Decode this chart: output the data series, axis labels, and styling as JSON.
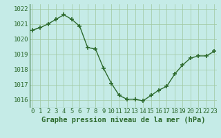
{
  "x": [
    0,
    1,
    2,
    3,
    4,
    5,
    6,
    7,
    8,
    9,
    10,
    11,
    12,
    13,
    14,
    15,
    16,
    17,
    18,
    19,
    20,
    21,
    22,
    23
  ],
  "y": [
    1020.6,
    1020.75,
    1021.0,
    1021.3,
    1021.6,
    1021.3,
    1020.85,
    1019.45,
    1019.35,
    1018.1,
    1017.1,
    1016.3,
    1016.05,
    1016.05,
    1015.95,
    1016.3,
    1016.65,
    1016.9,
    1017.7,
    1018.3,
    1018.75,
    1018.9,
    1018.9,
    1019.2
  ],
  "line_color": "#2d6a2d",
  "marker": "+",
  "marker_size": 4,
  "marker_lw": 1.2,
  "bg_color": "#c5ebe7",
  "grid_color": "#a0c8a0",
  "xlabel": "Graphe pression niveau de la mer (hPa)",
  "xlabel_fontsize": 7.5,
  "ylim": [
    1015.5,
    1022.3
  ],
  "xlim": [
    -0.3,
    23.3
  ],
  "yticks": [
    1016,
    1017,
    1018,
    1019,
    1020,
    1021,
    1022
  ],
  "xtick_labels": [
    "0",
    "1",
    "2",
    "3",
    "4",
    "5",
    "6",
    "7",
    "8",
    "9",
    "10",
    "11",
    "12",
    "13",
    "14",
    "15",
    "16",
    "17",
    "18",
    "19",
    "20",
    "21",
    "22",
    "23"
  ],
  "tick_fontsize": 6.5,
  "line_width": 1.0
}
